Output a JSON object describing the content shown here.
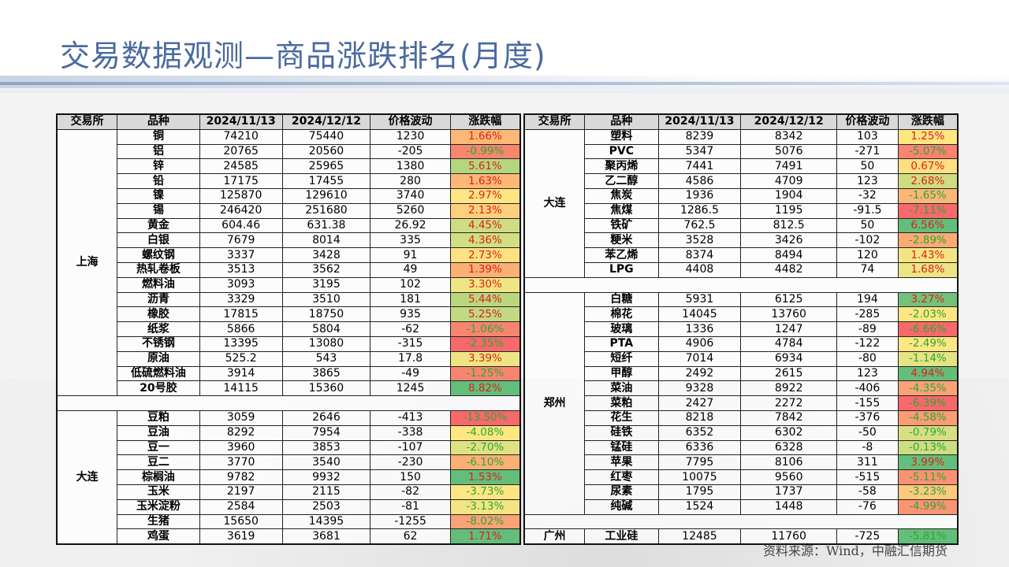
{
  "title": "交易数据观测—商品涨跌排名(月度)",
  "source": "资料来源：Wind，中融汇信期货",
  "colors": {
    "up_text": "#e0201b",
    "down_text": "#2aa836",
    "title": "#4a6aa0"
  },
  "headers": [
    "交易所",
    "品种",
    "2024/11/13",
    "2024/12/12",
    "价格波动",
    "涨跌幅"
  ],
  "left_table": [
    {
      "exchange": "上海",
      "rows": [
        [
          "铜",
          "74210",
          "75440",
          "1230",
          "1.66%",
          "#fbb877"
        ],
        [
          "铝",
          "20765",
          "20560",
          "-205",
          "-0.99%",
          "#f8866e"
        ],
        [
          "锌",
          "24585",
          "25965",
          "1380",
          "5.61%",
          "#b5d680"
        ],
        [
          "铅",
          "17175",
          "17455",
          "280",
          "1.63%",
          "#fbb877"
        ],
        [
          "镍",
          "125870",
          "129610",
          "3740",
          "2.97%",
          "#fde683"
        ],
        [
          "锡",
          "246420",
          "251680",
          "5260",
          "2.13%",
          "#fdd07f"
        ],
        [
          "黄金",
          "604.46",
          "631.38",
          "26.92",
          "4.45%",
          "#cfdd82"
        ],
        [
          "白银",
          "7679",
          "8014",
          "335",
          "4.36%",
          "#d2de82"
        ],
        [
          "螺纹钢",
          "3337",
          "3428",
          "91",
          "2.73%",
          "#fee182"
        ],
        [
          "热轧卷板",
          "3513",
          "3562",
          "49",
          "1.39%",
          "#fbb174"
        ],
        [
          "燃料油",
          "3093",
          "3195",
          "102",
          "3.30%",
          "#f0e584"
        ],
        [
          "沥青",
          "3329",
          "3510",
          "181",
          "5.44%",
          "#bad780"
        ],
        [
          "橡胶",
          "17815",
          "18750",
          "935",
          "5.25%",
          "#c1d981"
        ],
        [
          "纸浆",
          "5866",
          "5804",
          "-62",
          "-1.06%",
          "#f98570"
        ],
        [
          "不锈钢",
          "13395",
          "13080",
          "-315",
          "-2.35%",
          "#f8696b"
        ],
        [
          "原油",
          "525.2",
          "543",
          "17.8",
          "3.39%",
          "#ede584"
        ],
        [
          "低硫燃料油",
          "3914",
          "3865",
          "-49",
          "-1.25%",
          "#f98570"
        ],
        [
          "20号胶",
          "14115",
          "15360",
          "1245",
          "8.82%",
          "#63be7b"
        ]
      ]
    },
    {
      "exchange": "大连",
      "rows": [
        [
          "豆粕",
          "3059",
          "2646",
          "-413",
          "-13.50%",
          "#f8696b"
        ],
        [
          "豆油",
          "8292",
          "7954",
          "-338",
          "-4.08%",
          "#fee683"
        ],
        [
          "豆一",
          "3960",
          "3853",
          "-107",
          "-2.70%",
          "#dfe283"
        ],
        [
          "豆二",
          "3770",
          "3540",
          "-230",
          "-6.10%",
          "#fbaf74"
        ],
        [
          "棕榈油",
          "9782",
          "9932",
          "150",
          "1.53%",
          "#63be7b"
        ],
        [
          "玉米",
          "2197",
          "2115",
          "-82",
          "-3.73%",
          "#fee683"
        ],
        [
          "玉米淀粉",
          "2584",
          "2503",
          "-81",
          "-3.13%",
          "#f3e584"
        ],
        [
          "生猪",
          "15650",
          "14395",
          "-1255",
          "-8.02%",
          "#fba276"
        ],
        [
          "鸡蛋",
          "3619",
          "3681",
          "62",
          "1.71%",
          "#63be7b"
        ]
      ]
    }
  ],
  "right_table": [
    {
      "exchange": "大连",
      "rows": [
        [
          "塑料",
          "8239",
          "8342",
          "103",
          "1.25%",
          "#fee683"
        ],
        [
          "PVC",
          "5347",
          "5076",
          "-271",
          "-5.07%",
          "#f98370"
        ],
        [
          "聚丙烯",
          "7441",
          "7491",
          "50",
          "0.67%",
          "#fedf81"
        ],
        [
          "乙二醇",
          "4586",
          "4709",
          "123",
          "2.68%",
          "#cfdd82"
        ],
        [
          "焦炭",
          "1936",
          "1904",
          "-32",
          "-1.65%",
          "#fbb777"
        ],
        [
          "焦煤",
          "1286.5",
          "1195",
          "-91.5",
          "-7.11%",
          "#f8696b"
        ],
        [
          "铁矿",
          "762.5",
          "812.5",
          "50",
          "6.56%",
          "#63be7b"
        ],
        [
          "粳米",
          "3528",
          "3426",
          "-102",
          "-2.89%",
          "#fbaa75"
        ],
        [
          "苯乙烯",
          "8374",
          "8494",
          "120",
          "1.43%",
          "#f4e584"
        ],
        [
          "LPG",
          "4408",
          "4482",
          "74",
          "1.68%",
          "#ede584"
        ]
      ]
    },
    {
      "exchange": "郑州",
      "rows": [
        [
          "白糖",
          "5931",
          "6125",
          "194",
          "3.27%",
          "#72c27c"
        ],
        [
          "棉花",
          "14045",
          "13760",
          "-285",
          "-2.03%",
          "#fee683"
        ],
        [
          "玻璃",
          "1336",
          "1247",
          "-89",
          "-6.66%",
          "#f8696b"
        ],
        [
          "PTA",
          "4906",
          "4784",
          "-122",
          "-2.49%",
          "#fee683"
        ],
        [
          "短纤",
          "7014",
          "6934",
          "-80",
          "-1.14%",
          "#e6e383"
        ],
        [
          "甲醇",
          "2492",
          "2615",
          "123",
          "4.94%",
          "#63be7b"
        ],
        [
          "菜油",
          "9328",
          "8922",
          "-406",
          "-4.35%",
          "#fba276"
        ],
        [
          "菜粕",
          "2427",
          "2272",
          "-155",
          "-6.39%",
          "#f8696b"
        ],
        [
          "花生",
          "8218",
          "7842",
          "-376",
          "-4.58%",
          "#fb9c75"
        ],
        [
          "硅铁",
          "6352",
          "6302",
          "-50",
          "-0.79%",
          "#d7df82"
        ],
        [
          "锰硅",
          "6336",
          "6328",
          "-8",
          "-0.13%",
          "#cedd82"
        ],
        [
          "苹果",
          "7795",
          "8106",
          "311",
          "3.99%",
          "#63be7b"
        ],
        [
          "红枣",
          "10075",
          "9560",
          "-515",
          "-5.11%",
          "#fb9273"
        ],
        [
          "尿素",
          "1795",
          "1737",
          "-58",
          "-3.23%",
          "#fdc97d"
        ],
        [
          "纯碱",
          "1524",
          "1448",
          "-76",
          "-4.99%",
          "#fa9473"
        ]
      ]
    },
    {
      "exchange": "广州",
      "rows": [
        [
          "工业硅",
          "12485",
          "11760",
          "-725",
          "-5.81%",
          "#63be7b"
        ]
      ]
    }
  ]
}
